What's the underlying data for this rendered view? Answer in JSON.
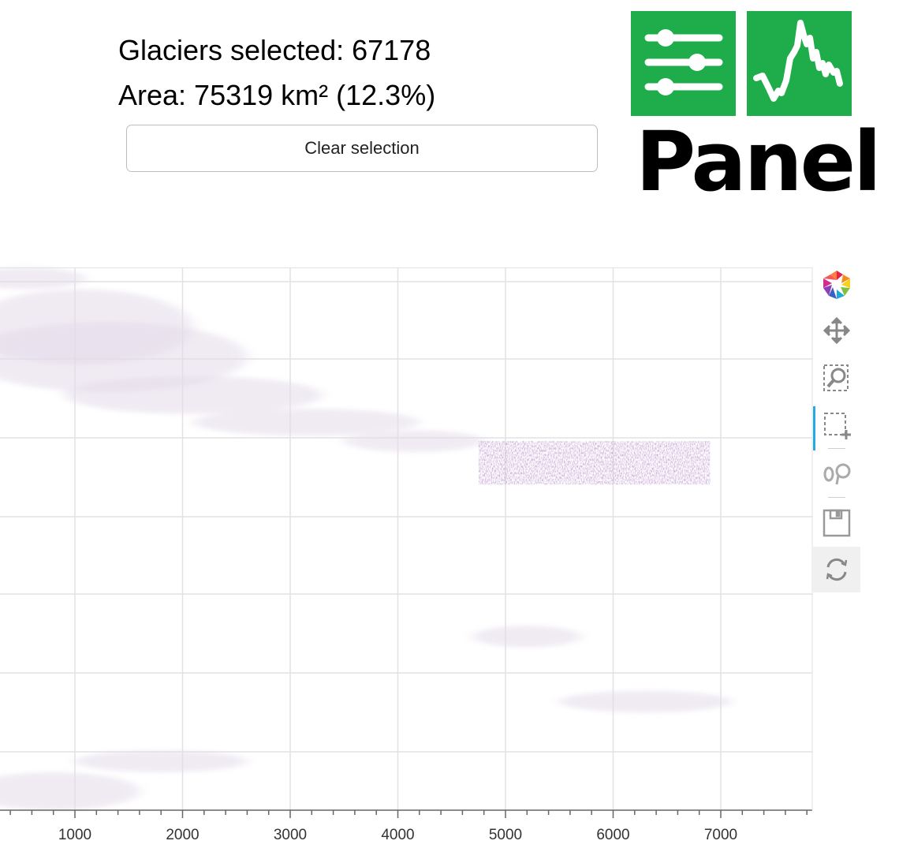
{
  "stats": {
    "glaciers_selected": "Glaciers selected: 67178",
    "area": "Area: 75319 km² (12.3%)"
  },
  "controls": {
    "clear_selection": "Clear selection"
  },
  "logo": {
    "wordmark": "Panel",
    "color": "#1ead4a"
  },
  "chart_data": {
    "type": "scatter",
    "title": "",
    "xlabel": "",
    "ylabel": "",
    "xlim": [
      0,
      8700
    ],
    "x_ticks": [
      1000,
      2000,
      3000,
      4000,
      5000,
      6000,
      7000
    ],
    "x_tick_labels": [
      "1000",
      "2000",
      "3000",
      "4000",
      "5000",
      "6000",
      "7000"
    ],
    "grid": true,
    "colors": {
      "unselected": "#e4dcea",
      "selected": "#7b4a9c",
      "grid": "#e2e2e2"
    },
    "series": [
      {
        "selected": false,
        "regions": [
          {
            "x": [
              0,
              1100
            ],
            "y": [
              0.0,
              0.04
            ]
          },
          {
            "x": [
              0,
              2100
            ],
            "y": [
              0.04,
              0.18
            ]
          },
          {
            "x": [
              0,
              2600
            ],
            "y": [
              0.1,
              0.23
            ]
          },
          {
            "x": [
              900,
              3300
            ],
            "y": [
              0.2,
              0.27
            ]
          },
          {
            "x": [
              2100,
              4200
            ],
            "y": [
              0.26,
              0.31
            ]
          },
          {
            "x": [
              3500,
              4800
            ],
            "y": [
              0.3,
              0.34
            ]
          },
          {
            "x": [
              4700,
              5700
            ],
            "y": [
              0.66,
              0.7
            ]
          },
          {
            "x": [
              5500,
              7100
            ],
            "y": [
              0.78,
              0.82
            ]
          },
          {
            "x": [
              1000,
              2600
            ],
            "y": [
              0.89,
              0.93
            ]
          },
          {
            "x": [
              0,
              1600
            ],
            "y": [
              0.93,
              1.0
            ]
          }
        ]
      },
      {
        "selected": true,
        "regions": [
          {
            "x": [
              4750,
              6900
            ],
            "y": [
              0.32,
              0.4
            ]
          }
        ]
      }
    ]
  },
  "toolbar": {
    "tools": [
      "bokeh-logo",
      "pan",
      "box-zoom",
      "box-select",
      "hover",
      "save",
      "reset"
    ],
    "active": "box-select"
  }
}
